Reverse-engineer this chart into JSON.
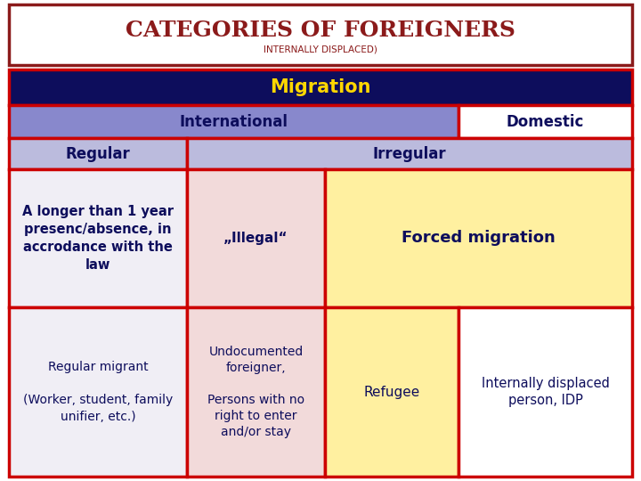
{
  "title_main_upper": "C",
  "title_main_rest": "ATEGORIES OF ",
  "title_main_upper2": "F",
  "title_main_rest2": "OREIGNERS",
  "title_main": "CATEGORIES OF FOREIGNERS",
  "title_sub": "INTERNALLY DISPLACED)",
  "title_color": "#8B1A1A",
  "title_bg": "#FFFFFF",
  "title_border": "#8B1A1A",
  "row_migration_text": "Migration",
  "row_migration_bg": "#0D0D5C",
  "row_migration_fg": "#FFD700",
  "row_intl_text": "International",
  "row_intl_bg": "#8888CC",
  "row_domestic_text": "Domestic",
  "row_domestic_bg": "#FFFFFF",
  "row_regular_text": "Regular",
  "row_regular_bg": "#BBBBDD",
  "row_irregular_text": "Irregular",
  "row_irregular_bg": "#BBBBDD",
  "cell_a1_text": "A longer than 1 year\npresenc/absence, in\naccrodance with the\nlaw",
  "cell_a1_bg": "#F0EEF5",
  "cell_b1_text": "„Illegal“",
  "cell_b1_bg": "#F2DADA",
  "cell_c1_text": "Forced migration",
  "cell_c1_bg": "#FFF0A0",
  "cell_a2_text": "Regular migrant\n\n(Worker, student, family\nunifier, etc.)",
  "cell_a2_bg": "#F0EEF5",
  "cell_b2_text": "Undocumented\nforeigner,\n\nPersons with no\nright to enter\nand/or stay",
  "cell_b2_bg": "#F2DADA",
  "cell_c2_text": "Refugee",
  "cell_c2_bg": "#FFF0A0",
  "cell_d2_text": "Internally displaced\nperson, IDP",
  "cell_d2_bg": "#FFFFFF",
  "border_color": "#CC0000",
  "text_color_dark": "#0D0D5C",
  "figw": 7.2,
  "figh": 5.4,
  "dpi": 100
}
